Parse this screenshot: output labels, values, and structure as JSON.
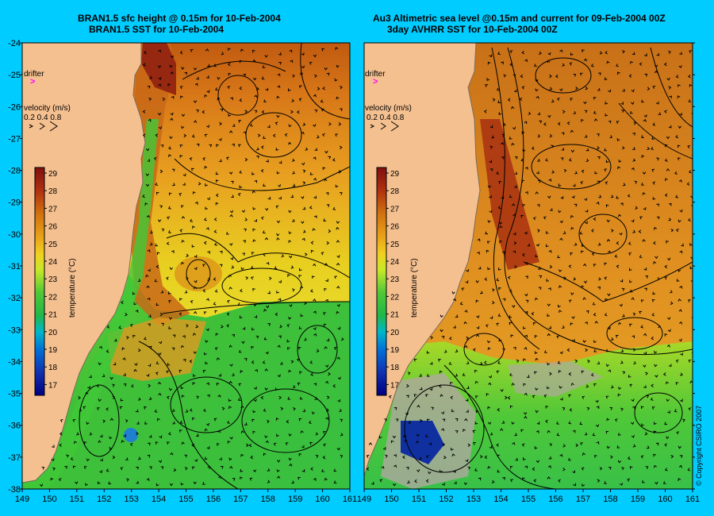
{
  "left_panel": {
    "title_line1": "BRAN1.5 sfc height @ 0.15m for 10-Feb-2004",
    "title_line2": "BRAN1.5 SST for 10-Feb-2004",
    "drifter_label": "drifter",
    "velocity_label": "velocity (m/s)",
    "velocity_values": "0.2 0.4 0.8",
    "colorbar_label": "temperature (°C)"
  },
  "right_panel": {
    "title_line1": "Au3 Altimetric sea level  @0.15m and current for 09-Feb-2004 00Z",
    "title_line2": "3day AVHRR SST for 10-Feb-2004 00Z",
    "drifter_label": "drifter",
    "velocity_label": "velocity (m/s)",
    "velocity_values": "0.2 0.4 0.8",
    "colorbar_label": "temperature (°C)",
    "copyright": "© Copyright CSIRO 2007"
  },
  "axes": {
    "lon_ticks": [
      "149",
      "150",
      "151",
      "152",
      "153",
      "154",
      "155",
      "156",
      "157",
      "158",
      "159",
      "160",
      "161"
    ],
    "lat_ticks": [
      "-24",
      "-25",
      "-26",
      "-27",
      "-28",
      "-29",
      "-30",
      "-31",
      "-32",
      "-33",
      "-34",
      "-35",
      "-36",
      "-37",
      "-38"
    ]
  },
  "colorbar": {
    "ticks": [
      "29",
      "28",
      "27",
      "26",
      "25",
      "24",
      "23",
      "22",
      "21",
      "20",
      "19",
      "18",
      "17"
    ],
    "colors": [
      "#8a1010",
      "#b03010",
      "#c86010",
      "#e89018",
      "#f0b820",
      "#e8e020",
      "#a8e828",
      "#40c838",
      "#30b848",
      "#00b0c0",
      "#0070d8",
      "#1030b0",
      "#000080"
    ]
  },
  "colors": {
    "background": "#00ccff",
    "land": "#f5c090",
    "coast": "#7a6a5a",
    "cloud_mask": "#b0a8a0"
  }
}
